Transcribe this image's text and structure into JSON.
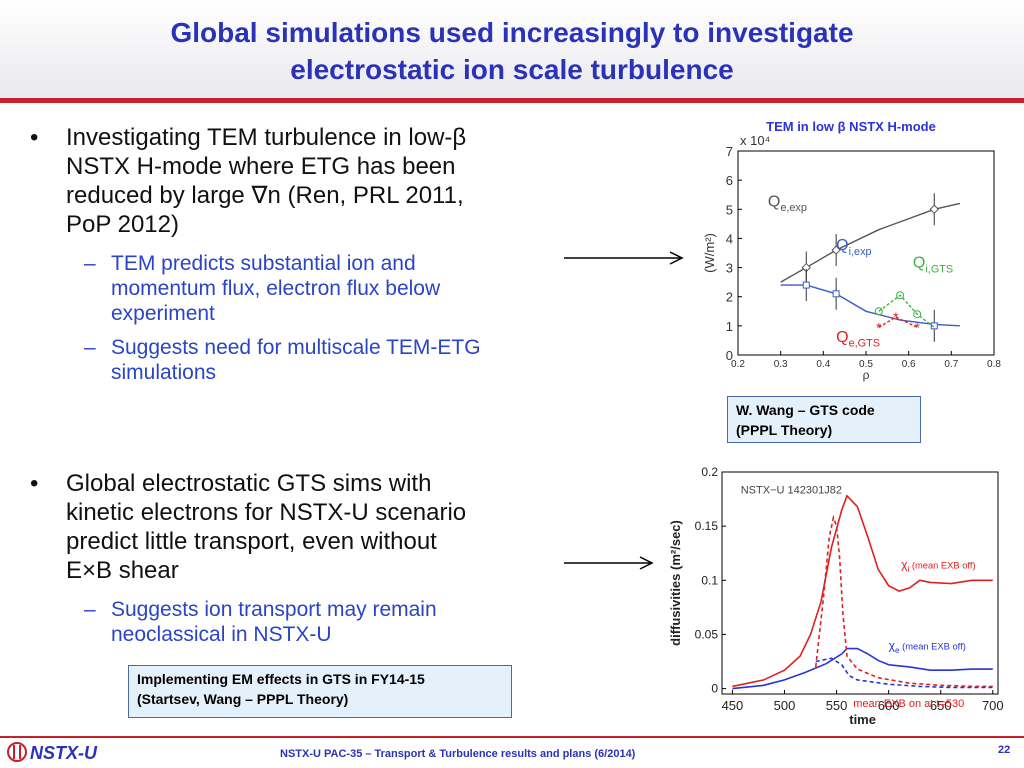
{
  "slide": {
    "title_line1": "Global simulations used increasingly to investigate",
    "title_line2": "electrostatic ion scale turbulence",
    "bullet1": {
      "line1": "Investigating TEM turbulence in low-β",
      "line2": "NSTX H-mode where ETG has been",
      "line3": "reduced by large ∇n (Ren, PRL 2011,",
      "line4": "PoP 2012)"
    },
    "sub1": {
      "item1_line1": "TEM predicts substantial ion and",
      "item1_line2": "momentum flux, electron flux below",
      "item1_line3": "experiment",
      "item2_line1": "Suggests need for multiscale TEM-ETG",
      "item2_line2": "simulations"
    },
    "bullet2": {
      "line1": "Global electrostatic GTS sims with",
      "line2": "kinetic electrons for NSTX-U scenario",
      "line3": "predict little transport, even without",
      "line4": "E×B shear"
    },
    "sub2": {
      "item1_line1": "Suggests ion transport may remain",
      "item1_line2": "neoclassical in NSTX-U"
    },
    "box_gts": {
      "line1": "W. Wang –  GTS code",
      "line2": "(PPPL Theory)"
    },
    "box_em": {
      "line1": "Implementing EM effects in GTS in FY14-15",
      "line2": "(Startsev, Wang – PPPL Theory)"
    },
    "footer": "NSTX-U PAC-35 – Transport & Turbulence results and plans (6/2014)",
    "page_number": "22",
    "logo_text": "NSTX-U"
  },
  "colors": {
    "title": "#2a32b8",
    "accent_red": "#c8202b",
    "sub_text": "#2a44c8"
  },
  "chart_data": [
    {
      "type": "line",
      "title": "TEM in low β NSTX H-mode",
      "xlabel": "ρ",
      "ylabel": "(W/m²)",
      "y_multiplier": "x 10⁴",
      "xlim": [
        0.2,
        0.8
      ],
      "ylim": [
        0,
        7
      ],
      "x_ticks": [
        "0.2",
        "0.3",
        "0.4",
        "0.5",
        "0.6",
        "0.7",
        "0.8"
      ],
      "y_ticks": [
        "0",
        "1",
        "2",
        "3",
        "4",
        "5",
        "6",
        "7"
      ],
      "series": [
        {
          "name": "Qe,exp",
          "label_main": "Q",
          "label_sub": "e,exp",
          "color": "#555555",
          "x": [
            0.3,
            0.36,
            0.43,
            0.53,
            0.66,
            0.72
          ],
          "y": [
            2.5,
            3.0,
            3.6,
            4.3,
            5.0,
            5.2
          ],
          "marker_x": [
            0.36,
            0.43,
            0.66
          ],
          "marker_y": [
            3.0,
            3.6,
            5.0
          ]
        },
        {
          "name": "Qi,exp",
          "label_main": "Q",
          "label_sub": "i,exp",
          "color": "#3a5cc8",
          "x": [
            0.3,
            0.36,
            0.43,
            0.5,
            0.58,
            0.66,
            0.72
          ],
          "y": [
            2.4,
            2.4,
            2.1,
            1.5,
            1.2,
            1.05,
            1.0
          ],
          "marker_x": [
            0.36,
            0.43,
            0.66
          ],
          "marker_y": [
            2.4,
            2.1,
            1.0
          ]
        },
        {
          "name": "Qi,GTS",
          "label_main": "Q",
          "label_sub": "i,GTS",
          "color": "#40b040",
          "x": [
            0.53,
            0.58,
            0.62,
            0.66
          ],
          "y": [
            1.5,
            2.05,
            1.4,
            0.95
          ]
        },
        {
          "name": "Qe,GTS",
          "label_main": "Q",
          "label_sub": "e,GTS",
          "color": "#e02020",
          "x": [
            0.53,
            0.57,
            0.62
          ],
          "y": [
            0.95,
            1.3,
            0.95
          ]
        }
      ]
    },
    {
      "type": "line",
      "annotation": "NSTX−U 142301J82",
      "xlabel": "time",
      "ylabel": "diffusivities (m²/sec)",
      "xlim": [
        440,
        705
      ],
      "ylim": [
        -0.005,
        0.2
      ],
      "x_ticks": [
        "450",
        "500",
        "550",
        "600",
        "650",
        "700"
      ],
      "y_ticks": [
        "0",
        "0.05",
        "0.1",
        "0.15",
        "0.2"
      ],
      "series": [
        {
          "name": "χi (mean EXB off)",
          "label_main": "χ",
          "label_sub": "i",
          "label_rest": " (mean EXB off)",
          "color": "#e02020",
          "dash": false,
          "x": [
            450,
            480,
            500,
            515,
            525,
            535,
            545,
            555,
            560,
            570,
            580,
            590,
            600,
            610,
            620,
            630,
            640,
            660,
            680,
            700
          ],
          "y": [
            0.002,
            0.008,
            0.017,
            0.03,
            0.05,
            0.08,
            0.13,
            0.165,
            0.178,
            0.168,
            0.14,
            0.11,
            0.095,
            0.09,
            0.093,
            0.1,
            0.098,
            0.097,
            0.1,
            0.1
          ]
        },
        {
          "name": "χe (mean EXB off)",
          "label_main": "χ",
          "label_sub": "e",
          "label_rest": " (mean EXB off)",
          "color": "#2a32d8",
          "dash": false,
          "x": [
            450,
            480,
            500,
            520,
            540,
            555,
            560,
            570,
            580,
            590,
            600,
            620,
            640,
            660,
            680,
            700
          ],
          "y": [
            0.0,
            0.003,
            0.008,
            0.015,
            0.023,
            0.032,
            0.037,
            0.037,
            0.032,
            0.026,
            0.022,
            0.02,
            0.017,
            0.017,
            0.018,
            0.018
          ]
        },
        {
          "name": "χi mean EXB on at t=530",
          "color": "#e02020",
          "dash": true,
          "x": [
            530,
            537,
            543,
            547,
            550,
            553,
            556,
            560,
            570,
            590,
            620,
            650,
            680,
            700
          ],
          "y": [
            0.02,
            0.08,
            0.14,
            0.158,
            0.15,
            0.12,
            0.07,
            0.03,
            0.018,
            0.01,
            0.005,
            0.003,
            0.002,
            0.002
          ]
        },
        {
          "name": "χe mean EXB on at t=530",
          "color": "#2a32d8",
          "dash": true,
          "x": [
            530,
            545,
            555,
            562,
            570,
            585,
            600,
            630,
            660,
            700
          ],
          "y": [
            0.025,
            0.028,
            0.022,
            0.012,
            0.008,
            0.006,
            0.004,
            0.002,
            0.001,
            0.001
          ]
        }
      ],
      "legend_note": "mean EXB on at t=530"
    }
  ]
}
